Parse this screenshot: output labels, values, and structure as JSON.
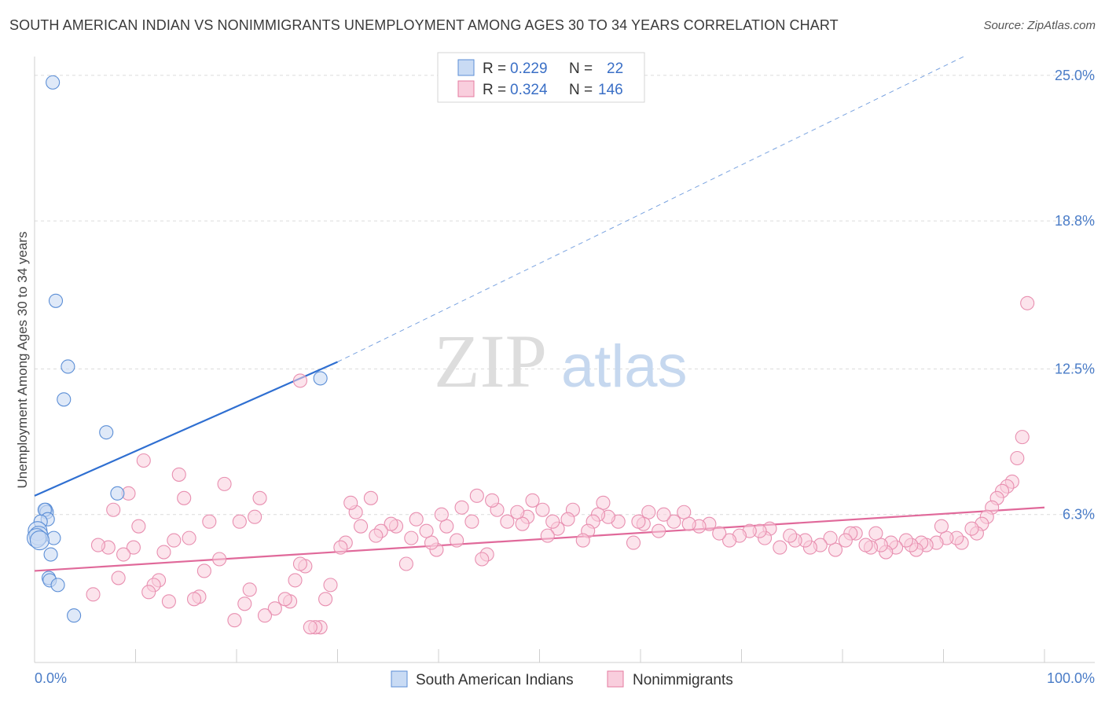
{
  "title": "SOUTH AMERICAN INDIAN VS NONIMMIGRANTS UNEMPLOYMENT AMONG AGES 30 TO 34 YEARS CORRELATION CHART",
  "source": "Source: ZipAtlas.com",
  "watermark": {
    "zip": "ZIP",
    "atlas": "atlas"
  },
  "legend": {
    "r_label": "R =",
    "n_label": "N =",
    "rows": [
      {
        "r": "0.229",
        "n": "22"
      },
      {
        "r": "0.324",
        "n": "146"
      }
    ]
  },
  "chart_data": {
    "type": "scatter",
    "title": "SOUTH AMERICAN INDIAN VS NONIMMIGRANTS UNEMPLOYMENT AMONG AGES 30 TO 34 YEARS CORRELATION CHART",
    "xlabel": "",
    "ylabel": "Unemployment Among Ages 30 to 34 years",
    "xlim": [
      0,
      100
    ],
    "ylim": [
      0,
      25.8
    ],
    "x_tick_labels": [
      "0.0%",
      "100.0%"
    ],
    "y_ticks": [
      6.3,
      12.5,
      18.8,
      25.0
    ],
    "y_tick_labels": [
      "6.3%",
      "12.5%",
      "18.8%",
      "25.0%"
    ],
    "grid": "horizontal dashed",
    "legend_position": "top-center",
    "colors": {
      "south_american_indians": "#5b8ed6",
      "south_american_indians_fill": "#c9dbf4",
      "nonimmigrants": "#e57ba0",
      "nonimmigrants_fill": "#f9cedd"
    },
    "series": [
      {
        "name": "South American Indians",
        "trend": {
          "x0": 0,
          "y0": 7.1,
          "x1": 30,
          "y1": 12.8,
          "dashed_to_x": 92,
          "dashed_to_y": 25.8
        },
        "points": [
          [
            1.8,
            24.7
          ],
          [
            2.1,
            15.4
          ],
          [
            3.3,
            12.6
          ],
          [
            2.9,
            11.2
          ],
          [
            7.1,
            9.8
          ],
          [
            8.2,
            7.2
          ],
          [
            28.3,
            12.1
          ],
          [
            1.1,
            6.5
          ],
          [
            1.2,
            6.4
          ],
          [
            1.0,
            6.5
          ],
          [
            1.3,
            6.1
          ],
          [
            0.6,
            6.0
          ],
          [
            0.3,
            5.6
          ],
          [
            0.4,
            5.4
          ],
          [
            0.2,
            5.3
          ],
          [
            1.9,
            5.3
          ],
          [
            1.6,
            4.6
          ],
          [
            1.4,
            3.6
          ],
          [
            1.5,
            3.5
          ],
          [
            2.3,
            3.3
          ],
          [
            3.9,
            2.0
          ],
          [
            0.5,
            5.2
          ]
        ]
      },
      {
        "name": "Nonimmigrants",
        "trend": {
          "x0": 0,
          "y0": 3.9,
          "x1": 100,
          "y1": 6.6
        },
        "points": [
          [
            26.3,
            12.0
          ],
          [
            98.3,
            15.3
          ],
          [
            97.8,
            9.6
          ],
          [
            97.3,
            8.7
          ],
          [
            96.8,
            7.7
          ],
          [
            96.3,
            7.5
          ],
          [
            95.8,
            7.3
          ],
          [
            95.3,
            7.0
          ],
          [
            94.8,
            6.6
          ],
          [
            94.3,
            6.2
          ],
          [
            93.8,
            5.9
          ],
          [
            93.3,
            5.5
          ],
          [
            92.8,
            5.7
          ],
          [
            91.8,
            5.1
          ],
          [
            91.3,
            5.3
          ],
          [
            90.3,
            5.3
          ],
          [
            89.8,
            5.8
          ],
          [
            89.3,
            5.1
          ],
          [
            88.3,
            5.0
          ],
          [
            87.8,
            5.1
          ],
          [
            87.3,
            4.8
          ],
          [
            86.8,
            5.0
          ],
          [
            86.3,
            5.2
          ],
          [
            85.3,
            4.9
          ],
          [
            84.8,
            5.1
          ],
          [
            84.3,
            4.7
          ],
          [
            83.8,
            5.0
          ],
          [
            83.3,
            5.5
          ],
          [
            82.8,
            4.9
          ],
          [
            82.3,
            5.0
          ],
          [
            81.3,
            5.5
          ],
          [
            80.8,
            5.5
          ],
          [
            80.3,
            5.2
          ],
          [
            79.3,
            4.8
          ],
          [
            78.8,
            5.3
          ],
          [
            77.8,
            5.0
          ],
          [
            76.8,
            4.9
          ],
          [
            76.3,
            5.2
          ],
          [
            75.3,
            5.2
          ],
          [
            74.8,
            5.4
          ],
          [
            73.8,
            4.9
          ],
          [
            72.8,
            5.7
          ],
          [
            72.3,
            5.3
          ],
          [
            71.8,
            5.6
          ],
          [
            70.8,
            5.6
          ],
          [
            69.8,
            5.4
          ],
          [
            68.8,
            5.2
          ],
          [
            67.8,
            5.5
          ],
          [
            66.8,
            5.9
          ],
          [
            65.8,
            5.8
          ],
          [
            64.8,
            5.9
          ],
          [
            64.3,
            6.4
          ],
          [
            63.3,
            6.0
          ],
          [
            62.3,
            6.3
          ],
          [
            61.8,
            5.6
          ],
          [
            60.8,
            6.4
          ],
          [
            60.3,
            5.9
          ],
          [
            59.8,
            6.0
          ],
          [
            59.3,
            5.1
          ],
          [
            57.8,
            6.0
          ],
          [
            56.8,
            6.2
          ],
          [
            56.3,
            6.8
          ],
          [
            55.8,
            6.3
          ],
          [
            55.3,
            6.0
          ],
          [
            54.8,
            5.6
          ],
          [
            54.3,
            5.2
          ],
          [
            53.3,
            6.5
          ],
          [
            52.8,
            6.1
          ],
          [
            51.8,
            5.7
          ],
          [
            51.3,
            6.0
          ],
          [
            50.8,
            5.4
          ],
          [
            50.3,
            6.5
          ],
          [
            49.3,
            6.9
          ],
          [
            48.8,
            6.2
          ],
          [
            48.3,
            5.9
          ],
          [
            47.8,
            6.4
          ],
          [
            46.8,
            6.0
          ],
          [
            45.8,
            6.5
          ],
          [
            45.3,
            6.9
          ],
          [
            44.8,
            4.6
          ],
          [
            44.3,
            4.4
          ],
          [
            43.8,
            7.1
          ],
          [
            43.3,
            6.0
          ],
          [
            42.3,
            6.6
          ],
          [
            41.8,
            5.2
          ],
          [
            40.8,
            5.8
          ],
          [
            40.3,
            6.3
          ],
          [
            39.8,
            4.8
          ],
          [
            39.3,
            5.1
          ],
          [
            38.8,
            5.6
          ],
          [
            37.8,
            6.1
          ],
          [
            37.3,
            5.3
          ],
          [
            36.8,
            4.2
          ],
          [
            35.8,
            5.8
          ],
          [
            35.3,
            5.9
          ],
          [
            34.3,
            5.6
          ],
          [
            33.8,
            5.4
          ],
          [
            33.3,
            7.0
          ],
          [
            32.3,
            5.8
          ],
          [
            31.8,
            6.4
          ],
          [
            31.3,
            6.8
          ],
          [
            30.8,
            5.1
          ],
          [
            30.3,
            4.9
          ],
          [
            29.3,
            3.3
          ],
          [
            28.8,
            2.7
          ],
          [
            28.3,
            1.5
          ],
          [
            27.8,
            1.5
          ],
          [
            27.3,
            1.5
          ],
          [
            26.8,
            4.1
          ],
          [
            26.3,
            4.2
          ],
          [
            25.8,
            3.5
          ],
          [
            25.3,
            2.6
          ],
          [
            24.8,
            2.7
          ],
          [
            23.8,
            2.3
          ],
          [
            22.8,
            2.0
          ],
          [
            22.3,
            7.0
          ],
          [
            21.8,
            6.2
          ],
          [
            21.3,
            3.1
          ],
          [
            20.8,
            2.5
          ],
          [
            20.3,
            6.0
          ],
          [
            19.8,
            1.8
          ],
          [
            18.8,
            7.6
          ],
          [
            18.3,
            4.4
          ],
          [
            17.3,
            6.0
          ],
          [
            16.8,
            3.9
          ],
          [
            16.3,
            2.8
          ],
          [
            15.8,
            2.7
          ],
          [
            15.3,
            5.3
          ],
          [
            14.8,
            7.0
          ],
          [
            14.3,
            8.0
          ],
          [
            13.8,
            5.2
          ],
          [
            13.3,
            2.6
          ],
          [
            12.8,
            4.7
          ],
          [
            12.3,
            3.5
          ],
          [
            11.8,
            3.3
          ],
          [
            11.3,
            3.0
          ],
          [
            10.8,
            8.6
          ],
          [
            10.3,
            5.8
          ],
          [
            9.8,
            4.9
          ],
          [
            9.3,
            7.2
          ],
          [
            8.8,
            4.6
          ],
          [
            8.3,
            3.6
          ],
          [
            7.8,
            6.5
          ],
          [
            7.3,
            4.9
          ],
          [
            6.3,
            5.0
          ],
          [
            5.8,
            2.9
          ]
        ]
      }
    ]
  },
  "bottom_legend": [
    "South American Indians",
    "Nonimmigrants"
  ]
}
